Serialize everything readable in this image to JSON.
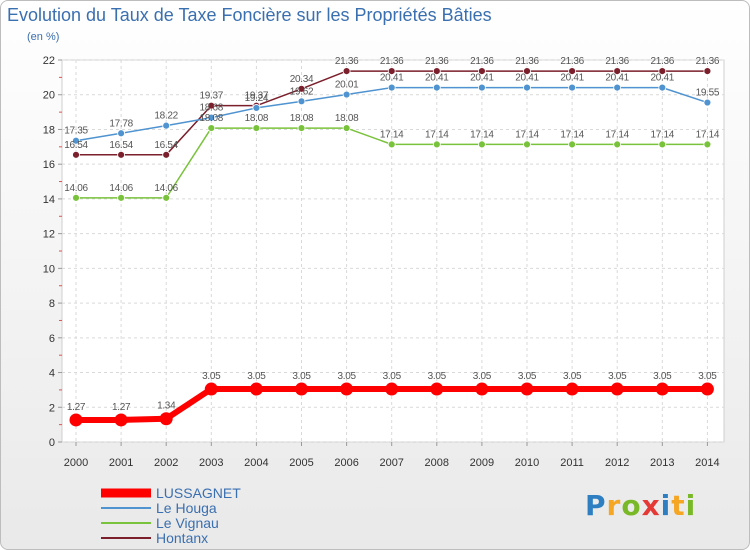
{
  "title": "Evolution du Taux de Taxe Foncière sur les Propriétés Bâties",
  "unit_label": "(en %)",
  "logo": {
    "letters": [
      "P",
      "r",
      "o",
      "x",
      "i",
      "t",
      "i"
    ],
    "colors": [
      "#2e7fc2",
      "#f5a623",
      "#79b928",
      "#e53935",
      "#2e7fc2",
      "#f5a623",
      "#79b928"
    ]
  },
  "chart_data": {
    "type": "line",
    "title": "Evolution du Taux de Taxe Foncière sur les Propriétés Bâties",
    "xlabel": "",
    "ylabel": "(en %)",
    "ylim": [
      0,
      22
    ],
    "yticks": [
      0,
      2,
      4,
      6,
      8,
      10,
      12,
      14,
      16,
      18,
      20,
      22
    ],
    "categories": [
      "2000",
      "2001",
      "2002",
      "2003",
      "2004",
      "2005",
      "2006",
      "2007",
      "2008",
      "2009",
      "2010",
      "2011",
      "2012",
      "2013",
      "2014"
    ],
    "series": [
      {
        "name": "Hontanx",
        "color": "#7a1f2b",
        "values": [
          16.54,
          16.54,
          16.54,
          19.37,
          19.37,
          20.34,
          21.36,
          21.36,
          21.36,
          21.36,
          21.36,
          21.36,
          21.36,
          21.36,
          21.36
        ],
        "labels": [
          "16.54",
          "16.54",
          "16.54",
          "19.37",
          "19.37",
          "20.34",
          "21.36",
          "21.36",
          "21.36",
          "21.36",
          "21.36",
          "21.36",
          "21.36",
          "21.36",
          "21.36"
        ]
      },
      {
        "name": "Le Houga",
        "color": "#4f93d0",
        "values": [
          17.35,
          17.78,
          18.22,
          18.68,
          19.24,
          19.62,
          20.01,
          20.41,
          20.41,
          20.41,
          20.41,
          20.41,
          20.41,
          20.41,
          19.55
        ],
        "labels": [
          "17.35",
          "17.78",
          "18.22",
          "18.68",
          "19.24",
          "19.62",
          "20.01",
          "20.41",
          "20.41",
          "20.41",
          "20.41",
          "20.41",
          "20.41",
          "20.41",
          "19.55"
        ]
      },
      {
        "name": "Le Vignau",
        "color": "#79c23b",
        "values": [
          14.06,
          14.06,
          14.06,
          18.08,
          18.08,
          18.08,
          18.08,
          17.14,
          17.14,
          17.14,
          17.14,
          17.14,
          17.14,
          17.14,
          17.14
        ],
        "labels": [
          "14.06",
          "14.06",
          "14.06",
          "18.08",
          "18.08",
          "18.08",
          "18.08",
          "17.14",
          "17.14",
          "17.14",
          "17.14",
          "17.14",
          "17.14",
          "17.14",
          "17.14"
        ]
      },
      {
        "name": "LUSSAGNET",
        "color": "#ff0000",
        "values": [
          1.27,
          1.27,
          1.34,
          3.05,
          3.05,
          3.05,
          3.05,
          3.05,
          3.05,
          3.05,
          3.05,
          3.05,
          3.05,
          3.05,
          3.05
        ],
        "labels": [
          "1.27",
          "1.27",
          "1.34",
          "3.05",
          "3.05",
          "3.05",
          "3.05",
          "3.05",
          "3.05",
          "3.05",
          "3.05",
          "3.05",
          "3.05",
          "3.05",
          "3.05"
        ]
      }
    ],
    "legend": {
      "position": "bottom-left",
      "entries": [
        "LUSSAGNET",
        "Le Houga",
        "Le Vignau",
        "Hontanx"
      ],
      "colors": [
        "#ff0000",
        "#4f93d0",
        "#79c23b",
        "#7a1f2b"
      ]
    }
  }
}
